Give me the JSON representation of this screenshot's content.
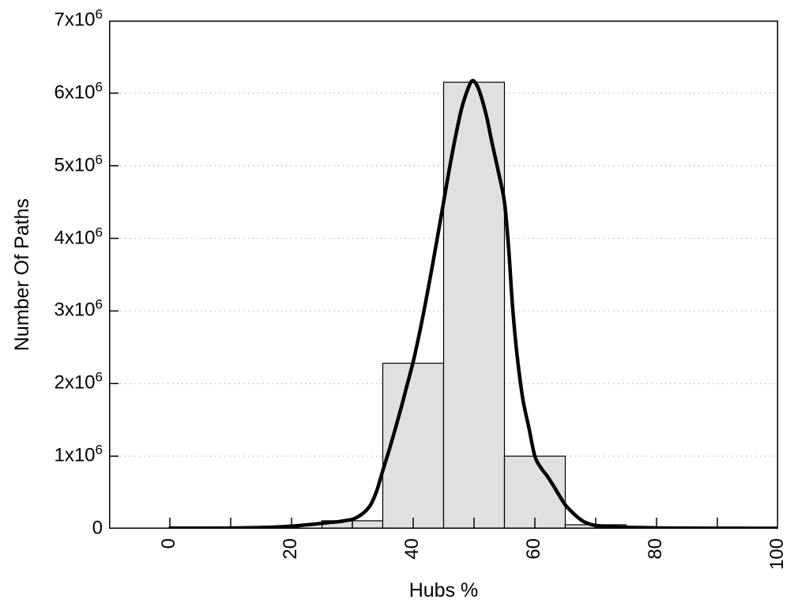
{
  "colors": {
    "background": "#ffffff",
    "axis": "#000000",
    "bar_fill": "#e0e0e0",
    "bar_stroke": "#000000",
    "curve": "#000000",
    "grid": "#b4b4b4"
  },
  "chart_data": {
    "type": "histogram_with_density_curve",
    "title": "",
    "xlabel": "Hubs %",
    "ylabel": "Number Of Paths",
    "xlim": [
      -10,
      100
    ],
    "ylim": [
      0,
      7000000
    ],
    "grid": {
      "horizontal": "dotted",
      "vertical": "none"
    },
    "legend": "none",
    "x_ticks": [
      {
        "v": 0,
        "label": "0"
      },
      {
        "v": 20,
        "label": "20"
      },
      {
        "v": 40,
        "label": "40"
      },
      {
        "v": 60,
        "label": "60"
      },
      {
        "v": 80,
        "label": "80"
      },
      {
        "v": 100,
        "label": "100"
      }
    ],
    "x_minor_tick_values": [
      10,
      30,
      50,
      70,
      90
    ],
    "y_ticks": [
      {
        "v": 0,
        "label": "0",
        "sup": ""
      },
      {
        "v": 1000000,
        "label": "1x10",
        "sup": "6"
      },
      {
        "v": 2000000,
        "label": "2x10",
        "sup": "6"
      },
      {
        "v": 3000000,
        "label": "3x10",
        "sup": "6"
      },
      {
        "v": 4000000,
        "label": "4x10",
        "sup": "6"
      },
      {
        "v": 5000000,
        "label": "5x10",
        "sup": "6"
      },
      {
        "v": 6000000,
        "label": "6x10",
        "sup": "6"
      },
      {
        "v": 7000000,
        "label": "7x10",
        "sup": "6"
      }
    ],
    "bars": {
      "bin_width": 10,
      "bins": [
        {
          "from": 25,
          "to": 35,
          "count": 110000
        },
        {
          "from": 35,
          "to": 45,
          "count": 2280000
        },
        {
          "from": 45,
          "to": 55,
          "count": 6150000
        },
        {
          "from": 55,
          "to": 65,
          "count": 1000000
        },
        {
          "from": 65,
          "to": 75,
          "count": 55000
        }
      ]
    },
    "curve": {
      "points": [
        [
          0,
          8000
        ],
        [
          5,
          8000
        ],
        [
          10,
          10000
        ],
        [
          14,
          15000
        ],
        [
          17,
          22000
        ],
        [
          20,
          35000
        ],
        [
          22,
          50000
        ],
        [
          24,
          65000
        ],
        [
          26,
          85000
        ],
        [
          28,
          100000
        ],
        [
          29,
          115000
        ],
        [
          30,
          130000
        ],
        [
          31,
          170000
        ],
        [
          32,
          230000
        ],
        [
          33,
          330000
        ],
        [
          34,
          520000
        ],
        [
          35,
          800000
        ],
        [
          36,
          1070000
        ],
        [
          37,
          1360000
        ],
        [
          38,
          1660000
        ],
        [
          39,
          1980000
        ],
        [
          40,
          2300000
        ],
        [
          41,
          2680000
        ],
        [
          42,
          3100000
        ],
        [
          43,
          3550000
        ],
        [
          44,
          4020000
        ],
        [
          45,
          4500000
        ],
        [
          46,
          4980000
        ],
        [
          47,
          5420000
        ],
        [
          48,
          5800000
        ],
        [
          49,
          6060000
        ],
        [
          49.7,
          6170000
        ],
        [
          50.4,
          6120000
        ],
        [
          51,
          6000000
        ],
        [
          52,
          5700000
        ],
        [
          53,
          5300000
        ],
        [
          54,
          4920000
        ],
        [
          55,
          4500000
        ],
        [
          55.7,
          3850000
        ],
        [
          56.3,
          3100000
        ],
        [
          57,
          2450000
        ],
        [
          58,
          1800000
        ],
        [
          59,
          1400000
        ],
        [
          60,
          1000000
        ],
        [
          61,
          840000
        ],
        [
          62,
          730000
        ],
        [
          63,
          600000
        ],
        [
          64,
          460000
        ],
        [
          65,
          330000
        ],
        [
          66,
          240000
        ],
        [
          67,
          160000
        ],
        [
          68,
          100000
        ],
        [
          69,
          65000
        ],
        [
          70,
          45000
        ],
        [
          72,
          30000
        ],
        [
          75,
          20000
        ],
        [
          78,
          15000
        ],
        [
          82,
          10000
        ],
        [
          88,
          7000
        ],
        [
          94,
          6000
        ],
        [
          100,
          5000
        ]
      ]
    }
  }
}
